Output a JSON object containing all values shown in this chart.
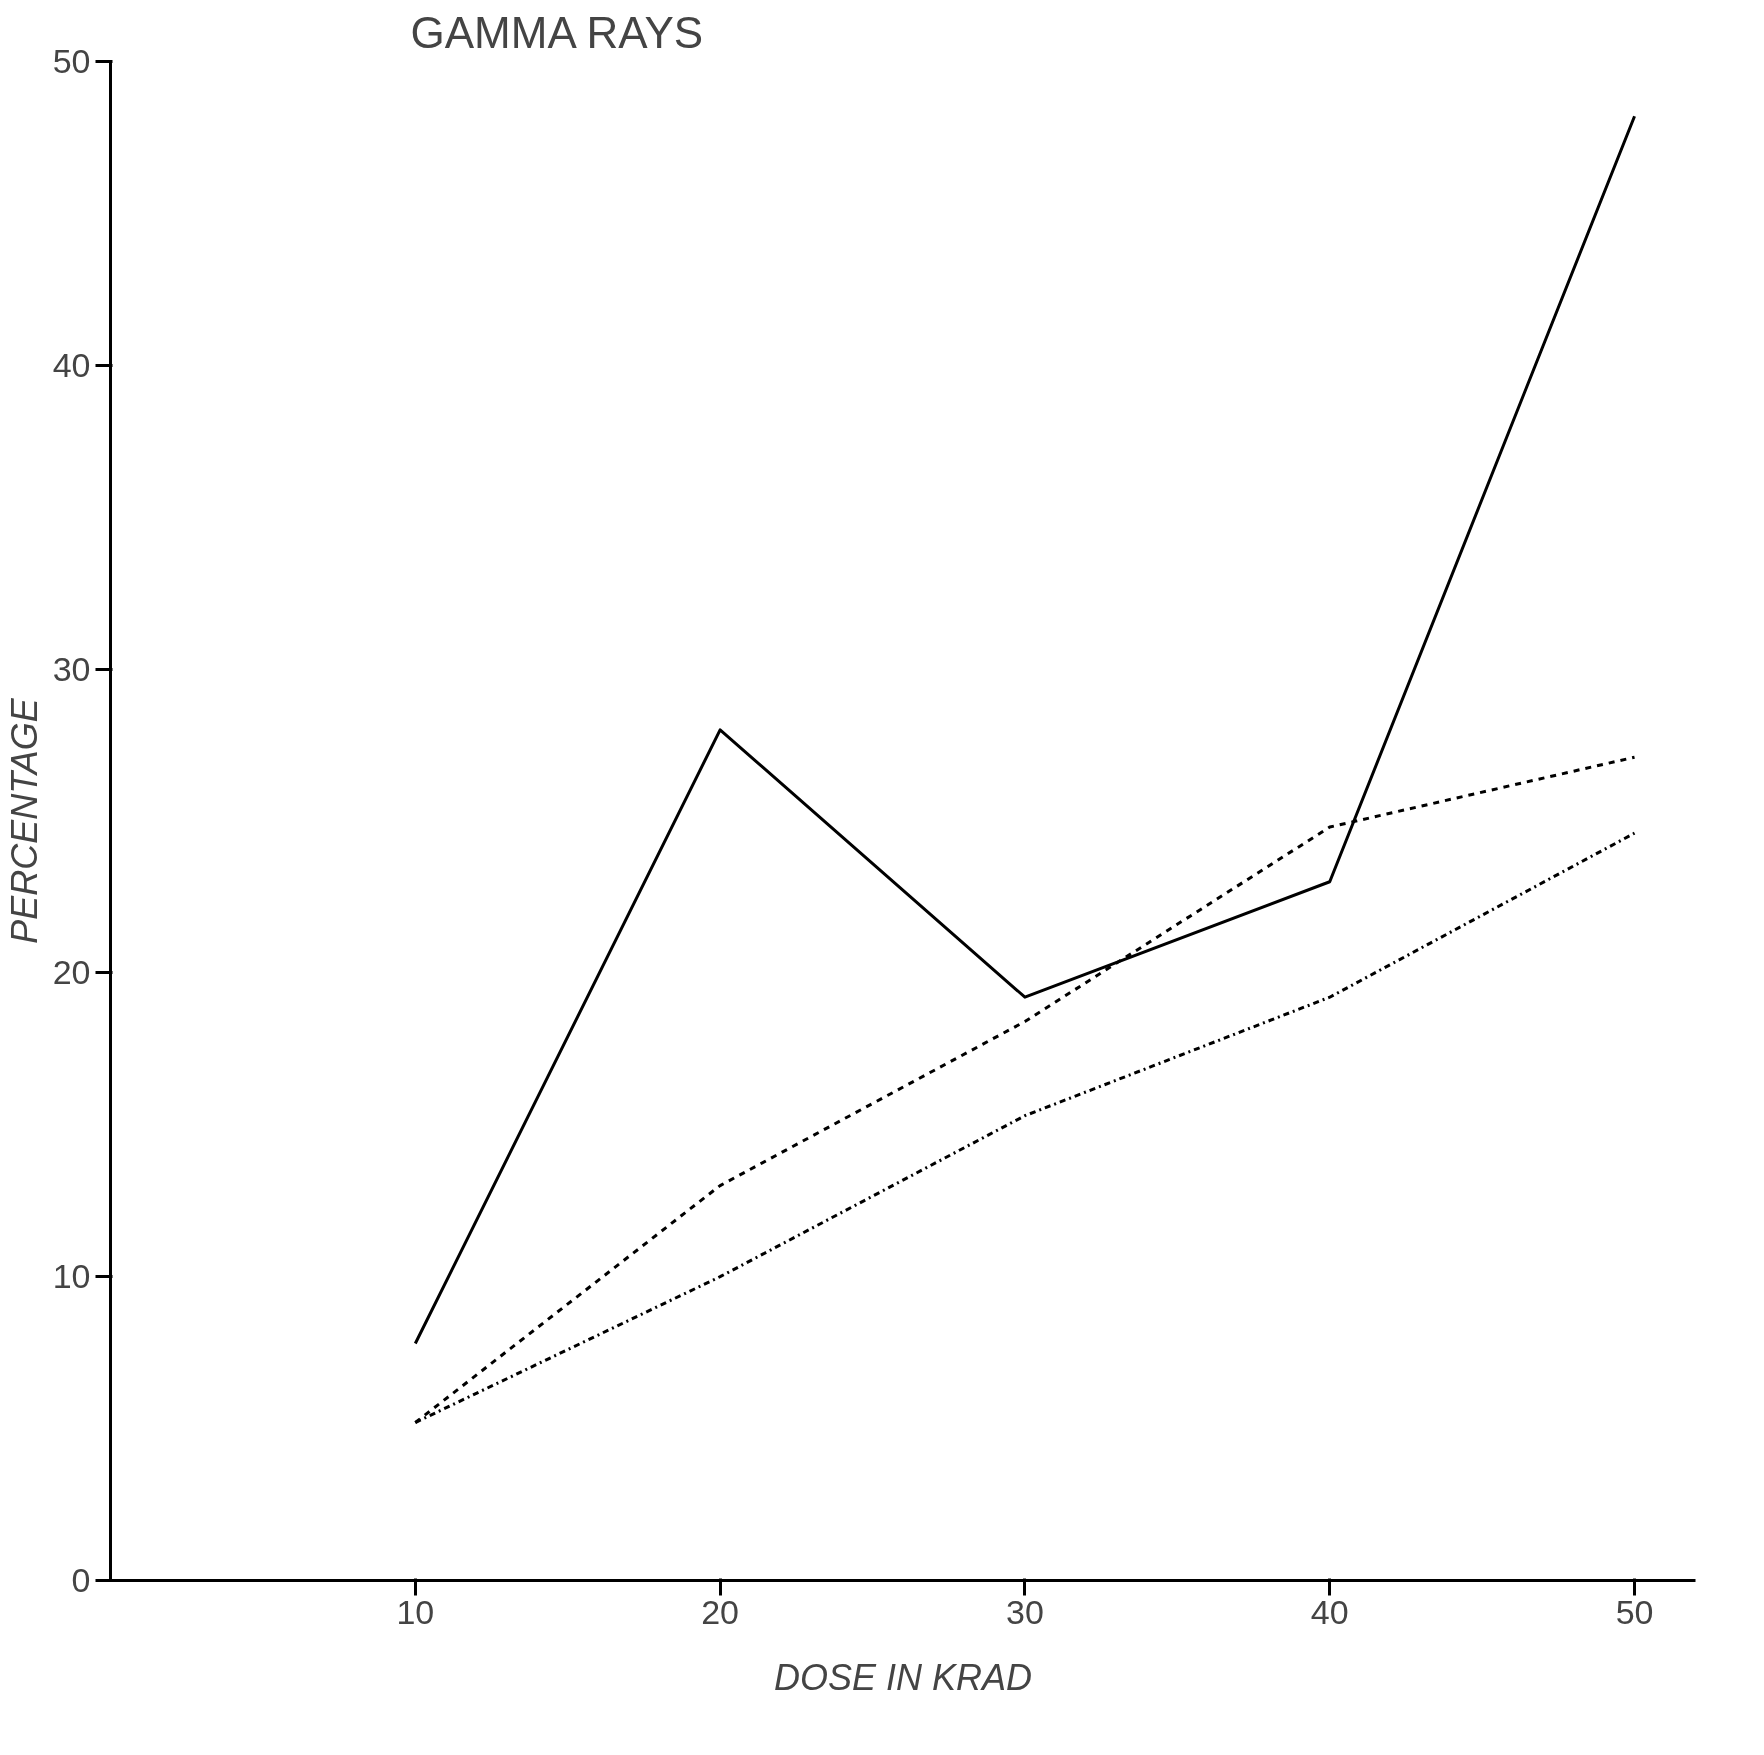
{
  "chart_data": {
    "type": "line",
    "title": "GAMMA RAYS",
    "xlabel": "DOSE IN KRAD",
    "ylabel": "PERCENTAGE",
    "x": [
      10,
      20,
      30,
      40,
      50
    ],
    "series": [
      {
        "color": "#000000",
        "line_style": "solid",
        "values": [
          7.8,
          28.0,
          19.2,
          23.0,
          48.2
        ]
      },
      {
        "color": "#000000",
        "line_style": "dashed",
        "values": [
          5.2,
          13.0,
          18.4,
          24.8,
          27.1
        ]
      },
      {
        "color": "#000000",
        "line_style": "dashdot",
        "values": [
          5.2,
          10.0,
          15.3,
          19.2,
          24.6
        ]
      }
    ],
    "xlim": [
      0,
      52
    ],
    "ylim": [
      0,
      50
    ],
    "xticks": [
      10,
      20,
      30,
      40,
      50
    ],
    "yticks": [
      0,
      10,
      20,
      30,
      40,
      50
    ],
    "grid": false
  }
}
